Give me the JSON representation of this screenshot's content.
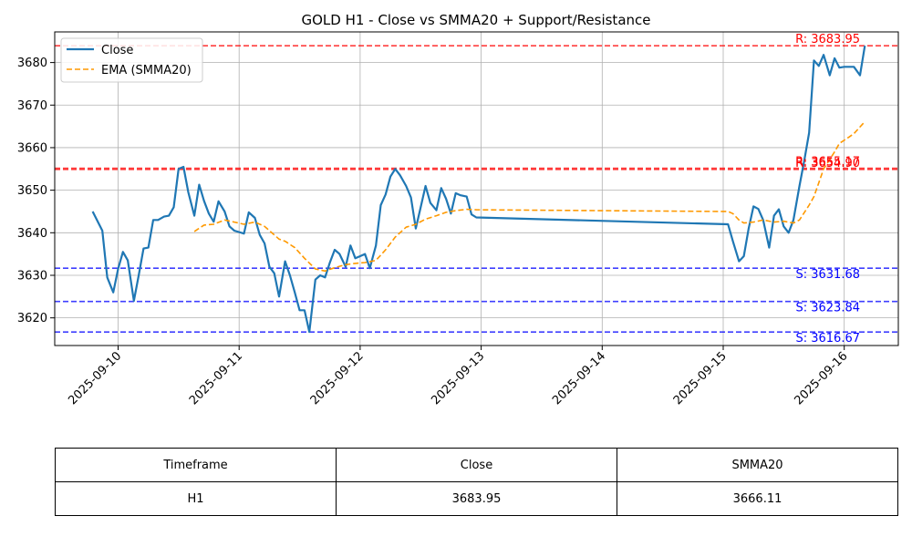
{
  "chart_data": {
    "type": "line",
    "title": "GOLD H1 - Close vs SMMA20 + Support/Resistance",
    "x_tick_labels": [
      "2025-09-10",
      "2025-09-11",
      "2025-09-12",
      "2025-09-13",
      "2025-09-14",
      "2025-09-15",
      "2025-09-16"
    ],
    "ylim": [
      3613.5,
      3687.2
    ],
    "y_ticks": [
      3620,
      3630,
      3640,
      3650,
      3660,
      3670,
      3680
    ],
    "grid": true,
    "legend_position": "top-left",
    "series": [
      {
        "name": "Close",
        "color": "#1f77b4",
        "style": "solid",
        "points": [
          [
            -0.21,
            3645.0
          ],
          [
            -0.13,
            3640.5
          ],
          [
            -0.09,
            3629.5
          ],
          [
            -0.04,
            3626.0
          ],
          [
            0.0,
            3631.5
          ],
          [
            0.04,
            3635.5
          ],
          [
            0.08,
            3633.5
          ],
          [
            0.13,
            3624.0
          ],
          [
            0.17,
            3630.0
          ],
          [
            0.21,
            3636.3
          ],
          [
            0.25,
            3636.5
          ],
          [
            0.29,
            3643.0
          ],
          [
            0.33,
            3643.0
          ],
          [
            0.38,
            3643.8
          ],
          [
            0.42,
            3644.0
          ],
          [
            0.46,
            3646.0
          ],
          [
            0.5,
            3655.0
          ],
          [
            0.54,
            3655.5
          ],
          [
            0.58,
            3649.5
          ],
          [
            0.63,
            3644.0
          ],
          [
            0.67,
            3651.3
          ],
          [
            0.71,
            3647.5
          ],
          [
            0.75,
            3644.5
          ],
          [
            0.79,
            3642.6
          ],
          [
            0.83,
            3647.4
          ],
          [
            0.88,
            3645.0
          ],
          [
            0.92,
            3641.5
          ],
          [
            0.96,
            3640.5
          ],
          [
            1.04,
            3639.8
          ],
          [
            1.08,
            3644.8
          ],
          [
            1.13,
            3643.5
          ],
          [
            1.17,
            3639.5
          ],
          [
            1.21,
            3637.5
          ],
          [
            1.25,
            3632.0
          ],
          [
            1.29,
            3630.5
          ],
          [
            1.33,
            3625.0
          ],
          [
            1.38,
            3633.3
          ],
          [
            1.42,
            3630.0
          ],
          [
            1.46,
            3626.0
          ],
          [
            1.5,
            3621.8
          ],
          [
            1.54,
            3621.8
          ],
          [
            1.58,
            3616.7
          ],
          [
            1.63,
            3629.0
          ],
          [
            1.67,
            3630.0
          ],
          [
            1.71,
            3629.5
          ],
          [
            1.75,
            3633.0
          ],
          [
            1.79,
            3636.0
          ],
          [
            1.83,
            3635.0
          ],
          [
            1.88,
            3632.0
          ],
          [
            1.92,
            3637.0
          ],
          [
            1.96,
            3634.0
          ],
          [
            2.0,
            3634.5
          ],
          [
            2.04,
            3635.0
          ],
          [
            2.08,
            3631.7
          ],
          [
            2.13,
            3637.0
          ],
          [
            2.17,
            3646.5
          ],
          [
            2.21,
            3649.0
          ],
          [
            2.25,
            3653.2
          ],
          [
            2.29,
            3655.0
          ],
          [
            2.33,
            3653.5
          ],
          [
            2.38,
            3651.0
          ],
          [
            2.42,
            3648.3
          ],
          [
            2.46,
            3641.0
          ],
          [
            2.5,
            3646.0
          ],
          [
            2.54,
            3651.0
          ],
          [
            2.58,
            3647.0
          ],
          [
            2.63,
            3645.3
          ],
          [
            2.67,
            3650.5
          ],
          [
            2.71,
            3648.0
          ],
          [
            2.75,
            3644.5
          ],
          [
            2.79,
            3649.3
          ],
          [
            2.83,
            3648.8
          ],
          [
            2.88,
            3648.5
          ],
          [
            2.92,
            3644.3
          ],
          [
            2.96,
            3643.6
          ],
          [
            5.04,
            3642.0
          ],
          [
            5.08,
            3638.0
          ],
          [
            5.13,
            3633.3
          ],
          [
            5.17,
            3634.5
          ],
          [
            5.21,
            3641.0
          ],
          [
            5.25,
            3646.2
          ],
          [
            5.29,
            3645.6
          ],
          [
            5.33,
            3643.0
          ],
          [
            5.38,
            3636.5
          ],
          [
            5.42,
            3644.0
          ],
          [
            5.46,
            3645.5
          ],
          [
            5.5,
            3641.5
          ],
          [
            5.54,
            3640.0
          ],
          [
            5.58,
            3643.0
          ],
          [
            5.63,
            3651.0
          ],
          [
            5.67,
            3657.0
          ],
          [
            5.71,
            3663.5
          ],
          [
            5.75,
            3680.5
          ],
          [
            5.79,
            3679.2
          ],
          [
            5.83,
            3681.8
          ],
          [
            5.88,
            3677.0
          ],
          [
            5.92,
            3681.0
          ],
          [
            5.96,
            3678.8
          ],
          [
            6.0,
            3679.0
          ],
          [
            6.08,
            3679.0
          ],
          [
            6.13,
            3677.0
          ],
          [
            6.17,
            3683.95
          ]
        ]
      },
      {
        "name": "EMA (SMMA20)",
        "color": "#ff9900",
        "style": "dashed",
        "points": [
          [
            0.63,
            3640.3
          ],
          [
            0.71,
            3641.8
          ],
          [
            0.79,
            3642.0
          ],
          [
            0.88,
            3643.0
          ],
          [
            0.96,
            3642.5
          ],
          [
            1.04,
            3642.0
          ],
          [
            1.13,
            3642.5
          ],
          [
            1.21,
            3641.5
          ],
          [
            1.29,
            3639.5
          ],
          [
            1.33,
            3638.5
          ],
          [
            1.38,
            3638.0
          ],
          [
            1.46,
            3636.5
          ],
          [
            1.54,
            3634.0
          ],
          [
            1.63,
            3631.5
          ],
          [
            1.71,
            3631.0
          ],
          [
            1.79,
            3631.8
          ],
          [
            1.88,
            3632.5
          ],
          [
            1.96,
            3632.8
          ],
          [
            2.04,
            3633.0
          ],
          [
            2.13,
            3633.5
          ],
          [
            2.21,
            3636.0
          ],
          [
            2.29,
            3639.0
          ],
          [
            2.38,
            3641.3
          ],
          [
            2.46,
            3642.0
          ],
          [
            2.54,
            3643.2
          ],
          [
            2.63,
            3644.0
          ],
          [
            2.71,
            3644.8
          ],
          [
            2.79,
            3645.2
          ],
          [
            2.88,
            3645.5
          ],
          [
            2.96,
            3645.4
          ],
          [
            5.04,
            3645.0
          ],
          [
            5.08,
            3644.5
          ],
          [
            5.13,
            3643.0
          ],
          [
            5.17,
            3642.3
          ],
          [
            5.25,
            3642.5
          ],
          [
            5.33,
            3643.0
          ],
          [
            5.42,
            3642.5
          ],
          [
            5.5,
            3642.7
          ],
          [
            5.58,
            3642.3
          ],
          [
            5.63,
            3643.0
          ],
          [
            5.71,
            3646.5
          ],
          [
            5.75,
            3648.5
          ],
          [
            5.83,
            3655.0
          ],
          [
            5.92,
            3659.0
          ],
          [
            5.96,
            3661.0
          ],
          [
            6.04,
            3662.5
          ],
          [
            6.08,
            3663.3
          ],
          [
            6.17,
            3666.11
          ]
        ]
      }
    ],
    "resistance": [
      {
        "value": 3683.95,
        "label": "R: 3683.95"
      },
      {
        "value": 3655.17,
        "label": "R: 3655.17"
      },
      {
        "value": 3654.9,
        "label": "R: 3654.90"
      }
    ],
    "support": [
      {
        "value": 3631.68,
        "label": "S: 3631.68"
      },
      {
        "value": 3623.84,
        "label": "S: 3623.84"
      },
      {
        "value": 3616.67,
        "label": "S: 3616.67"
      }
    ],
    "resistance_color": "#ff0000",
    "support_color": "#0000ff",
    "table": {
      "headers": [
        "Timeframe",
        "Close",
        "SMMA20"
      ],
      "rows": [
        [
          "H1",
          "3683.95",
          "3666.11"
        ]
      ]
    }
  }
}
